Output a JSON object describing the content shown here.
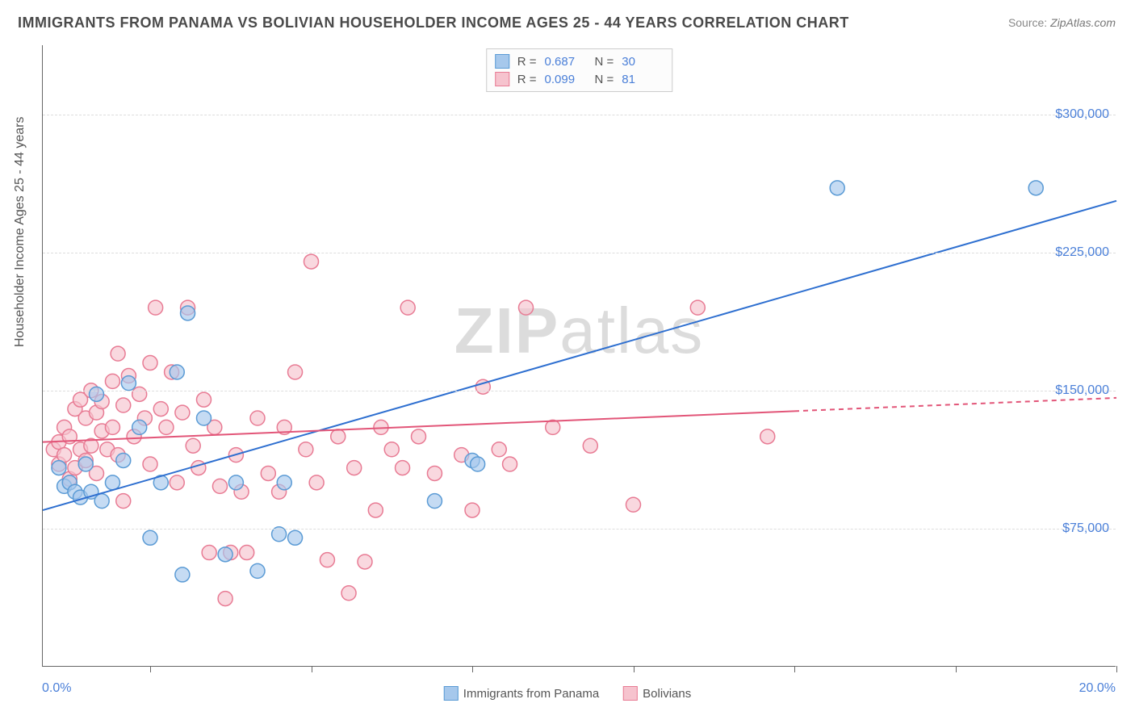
{
  "title": "IMMIGRANTS FROM PANAMA VS BOLIVIAN HOUSEHOLDER INCOME AGES 25 - 44 YEARS CORRELATION CHART",
  "source_label": "Source: ",
  "source_value": "ZipAtlas.com",
  "watermark_bold": "ZIP",
  "watermark_rest": "atlas",
  "chart": {
    "type": "scatter",
    "background_color": "#ffffff",
    "grid_color": "#dddddd",
    "axis_color": "#666666",
    "xlim": [
      0.0,
      20.0
    ],
    "ylim": [
      0,
      337500
    ],
    "x_min_label": "0.0%",
    "x_max_label": "20.0%",
    "xtick_positions": [
      2.0,
      5.0,
      8.0,
      11.0,
      14.0,
      17.0,
      20.0
    ],
    "ytick_values": [
      75000,
      150000,
      225000,
      300000
    ],
    "ytick_labels": [
      "$75,000",
      "$150,000",
      "$225,000",
      "$300,000"
    ],
    "yaxis_title": "Householder Income Ages 25 - 44 years",
    "title_fontsize": 18,
    "label_fontsize": 16,
    "tick_color": "#4a7fd8",
    "marker_radius": 9,
    "marker_stroke_width": 1.5,
    "line_width": 2,
    "series": [
      {
        "name": "Immigrants from Panama",
        "fill_color": "#a6c8ec",
        "stroke_color": "#5b9bd5",
        "line_color": "#2e6fd0",
        "r_value": "0.687",
        "n_value": "30",
        "regression": {
          "x1": 0.0,
          "y1": 85000,
          "x2": 20.0,
          "y2": 253000,
          "solid_until_x": 20.0
        },
        "points": [
          [
            0.3,
            108000
          ],
          [
            0.4,
            98000
          ],
          [
            0.5,
            100000
          ],
          [
            0.6,
            95000
          ],
          [
            0.7,
            92000
          ],
          [
            0.8,
            110000
          ],
          [
            0.9,
            95000
          ],
          [
            1.0,
            148000
          ],
          [
            1.1,
            90000
          ],
          [
            1.3,
            100000
          ],
          [
            1.5,
            112000
          ],
          [
            1.6,
            154000
          ],
          [
            1.8,
            130000
          ],
          [
            2.0,
            70000
          ],
          [
            2.2,
            100000
          ],
          [
            2.5,
            160000
          ],
          [
            2.6,
            50000
          ],
          [
            2.7,
            192000
          ],
          [
            3.0,
            135000
          ],
          [
            3.4,
            61000
          ],
          [
            3.6,
            100000
          ],
          [
            4.0,
            52000
          ],
          [
            4.4,
            72000
          ],
          [
            4.5,
            100000
          ],
          [
            4.7,
            70000
          ],
          [
            7.3,
            90000
          ],
          [
            8.0,
            112000
          ],
          [
            8.1,
            110000
          ],
          [
            14.8,
            260000
          ],
          [
            18.5,
            260000
          ]
        ]
      },
      {
        "name": "Bolivians",
        "fill_color": "#f6c3ce",
        "stroke_color": "#e87b94",
        "line_color": "#e25578",
        "r_value": "0.099",
        "n_value": "81",
        "regression": {
          "x1": 0.0,
          "y1": 122000,
          "x2": 20.0,
          "y2": 146000,
          "solid_until_x": 14.0
        },
        "points": [
          [
            0.2,
            118000
          ],
          [
            0.3,
            122000
          ],
          [
            0.3,
            110000
          ],
          [
            0.4,
            130000
          ],
          [
            0.4,
            115000
          ],
          [
            0.5,
            125000
          ],
          [
            0.5,
            102000
          ],
          [
            0.6,
            140000
          ],
          [
            0.6,
            108000
          ],
          [
            0.7,
            118000
          ],
          [
            0.7,
            145000
          ],
          [
            0.8,
            135000
          ],
          [
            0.8,
            112000
          ],
          [
            0.9,
            150000
          ],
          [
            0.9,
            120000
          ],
          [
            1.0,
            138000
          ],
          [
            1.0,
            105000
          ],
          [
            1.1,
            128000
          ],
          [
            1.1,
            144000
          ],
          [
            1.2,
            118000
          ],
          [
            1.3,
            155000
          ],
          [
            1.3,
            130000
          ],
          [
            1.4,
            170000
          ],
          [
            1.4,
            115000
          ],
          [
            1.5,
            142000
          ],
          [
            1.5,
            90000
          ],
          [
            1.6,
            158000
          ],
          [
            1.7,
            125000
          ],
          [
            1.8,
            148000
          ],
          [
            1.9,
            135000
          ],
          [
            2.0,
            165000
          ],
          [
            2.0,
            110000
          ],
          [
            2.1,
            195000
          ],
          [
            2.2,
            140000
          ],
          [
            2.3,
            130000
          ],
          [
            2.4,
            160000
          ],
          [
            2.5,
            100000
          ],
          [
            2.6,
            138000
          ],
          [
            2.7,
            195000
          ],
          [
            2.8,
            120000
          ],
          [
            2.9,
            108000
          ],
          [
            3.0,
            145000
          ],
          [
            3.1,
            62000
          ],
          [
            3.2,
            130000
          ],
          [
            3.3,
            98000
          ],
          [
            3.4,
            37000
          ],
          [
            3.5,
            62000
          ],
          [
            3.6,
            115000
          ],
          [
            3.7,
            95000
          ],
          [
            3.8,
            62000
          ],
          [
            4.0,
            135000
          ],
          [
            4.2,
            105000
          ],
          [
            4.4,
            95000
          ],
          [
            4.5,
            130000
          ],
          [
            4.7,
            160000
          ],
          [
            4.9,
            118000
          ],
          [
            5.0,
            220000
          ],
          [
            5.1,
            100000
          ],
          [
            5.3,
            58000
          ],
          [
            5.5,
            125000
          ],
          [
            5.7,
            40000
          ],
          [
            5.8,
            108000
          ],
          [
            6.0,
            57000
          ],
          [
            6.2,
            85000
          ],
          [
            6.3,
            130000
          ],
          [
            6.5,
            118000
          ],
          [
            6.7,
            108000
          ],
          [
            6.8,
            195000
          ],
          [
            7.0,
            125000
          ],
          [
            7.3,
            105000
          ],
          [
            7.8,
            115000
          ],
          [
            8.0,
            85000
          ],
          [
            8.2,
            152000
          ],
          [
            8.5,
            118000
          ],
          [
            8.7,
            110000
          ],
          [
            9.0,
            195000
          ],
          [
            9.5,
            130000
          ],
          [
            10.2,
            120000
          ],
          [
            11.0,
            88000
          ],
          [
            12.2,
            195000
          ],
          [
            13.5,
            125000
          ]
        ]
      }
    ],
    "legend_bottom": [
      {
        "label": "Immigrants from Panama",
        "fill": "#a6c8ec",
        "stroke": "#5b9bd5"
      },
      {
        "label": "Bolivians",
        "fill": "#f6c3ce",
        "stroke": "#e87b94"
      }
    ]
  }
}
